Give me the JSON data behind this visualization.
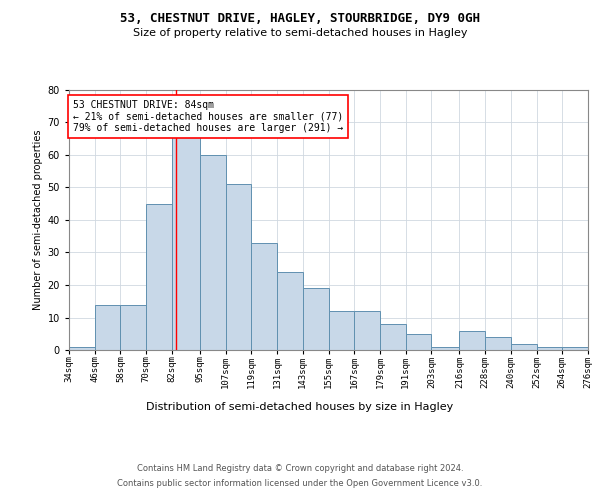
{
  "title1": "53, CHESTNUT DRIVE, HAGLEY, STOURBRIDGE, DY9 0GH",
  "title2": "Size of property relative to semi-detached houses in Hagley",
  "xlabel": "Distribution of semi-detached houses by size in Hagley",
  "ylabel": "Number of semi-detached properties",
  "footer1": "Contains HM Land Registry data © Crown copyright and database right 2024.",
  "footer2": "Contains public sector information licensed under the Open Government Licence v3.0.",
  "annotation_line1": "53 CHESTNUT DRIVE: 84sqm",
  "annotation_line2": "← 21% of semi-detached houses are smaller (77)",
  "annotation_line3": "79% of semi-detached houses are larger (291) →",
  "property_sqm": 84,
  "bar_left_edges": [
    34,
    46,
    58,
    70,
    82,
    95,
    107,
    119,
    131,
    143,
    155,
    167,
    179,
    191,
    203,
    216,
    228,
    240,
    252,
    264
  ],
  "bar_widths": [
    12,
    12,
    12,
    12,
    13,
    12,
    12,
    12,
    12,
    12,
    12,
    12,
    12,
    12,
    13,
    12,
    12,
    12,
    12,
    12
  ],
  "bar_heights": [
    1,
    14,
    14,
    45,
    68,
    60,
    51,
    33,
    24,
    19,
    12,
    12,
    8,
    5,
    1,
    6,
    4,
    2,
    1,
    1
  ],
  "x_tick_labels": [
    "34sqm",
    "46sqm",
    "58sqm",
    "70sqm",
    "82sqm",
    "95sqm",
    "107sqm",
    "119sqm",
    "131sqm",
    "143sqm",
    "155sqm",
    "167sqm",
    "179sqm",
    "191sqm",
    "203sqm",
    "216sqm",
    "228sqm",
    "240sqm",
    "252sqm",
    "264sqm",
    "276sqm"
  ],
  "x_tick_positions": [
    34,
    46,
    58,
    70,
    82,
    95,
    107,
    119,
    131,
    143,
    155,
    167,
    179,
    191,
    203,
    216,
    228,
    240,
    252,
    264,
    276
  ],
  "ylim": [
    0,
    80
  ],
  "bar_color": "#c8d8e8",
  "bar_edge_color": "#6090b0",
  "red_line_x": 84,
  "grid_color": "#d0d8e0",
  "background_color": "#ffffff",
  "title1_fontsize": 9,
  "title2_fontsize": 8,
  "ylabel_fontsize": 7,
  "tick_fontsize": 6.5,
  "xlabel_fontsize": 8,
  "footer_fontsize": 6,
  "annot_fontsize": 7
}
